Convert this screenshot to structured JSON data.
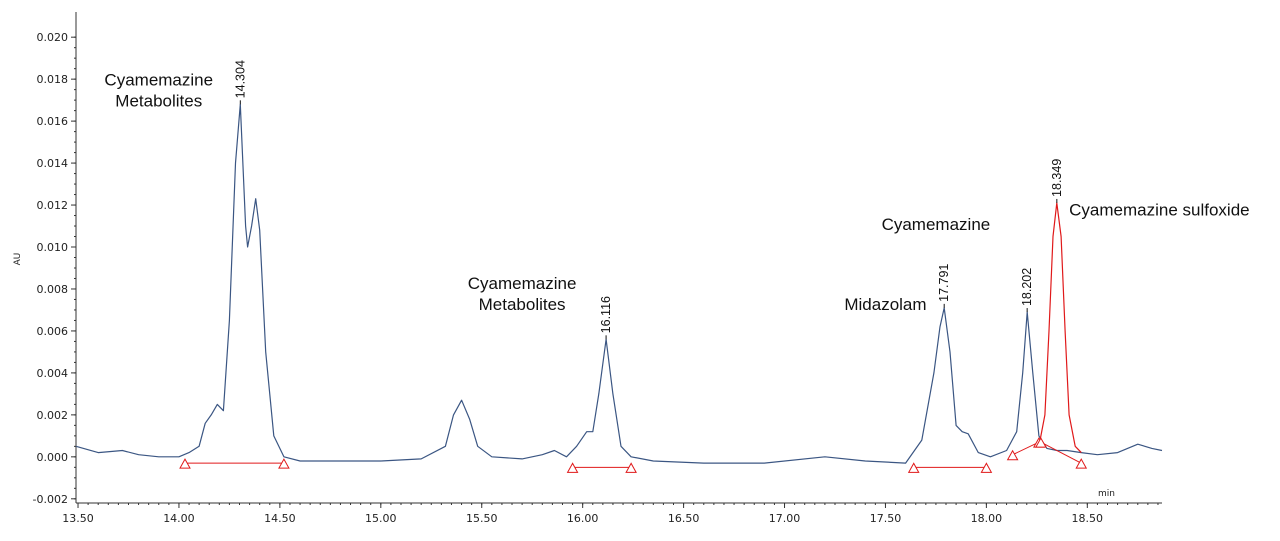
{
  "chart_data": {
    "type": "line",
    "ylabel": "AU",
    "xunit": "min",
    "xlim": [
      13.49,
      18.87
    ],
    "ylim": [
      -0.0022,
      0.0212
    ],
    "x_ticks": [
      13.5,
      14.0,
      14.5,
      15.0,
      15.5,
      16.0,
      16.5,
      17.0,
      17.5,
      18.0,
      18.5
    ],
    "x_tick_labels": [
      "13.50",
      "14.00",
      "14.50",
      "15.00",
      "15.50",
      "16.00",
      "16.50",
      "17.00",
      "17.50",
      "18.00",
      "18.50"
    ],
    "y_ticks": [
      -0.002,
      0.0,
      0.002,
      0.004,
      0.006,
      0.008,
      0.01,
      0.012,
      0.014,
      0.016,
      0.018,
      0.02
    ],
    "y_tick_labels": [
      "-0.002",
      "0.000",
      "0.002",
      "0.004",
      "0.006",
      "0.008",
      "0.010",
      "0.012",
      "0.014",
      "0.016",
      "0.018",
      "0.020"
    ],
    "colors": {
      "trace": "#3b5683",
      "highlight": "#e0191a",
      "baseline": "#e0191a",
      "axis": "#333333"
    },
    "series": [
      {
        "color": "#3b5683",
        "x": [
          13.49,
          13.6,
          13.72,
          13.8,
          13.9,
          14.0,
          14.05,
          14.1,
          14.13,
          14.16,
          14.19,
          14.22,
          14.25,
          14.28,
          14.304,
          14.33,
          14.34,
          14.36,
          14.38,
          14.4,
          14.43,
          14.47,
          14.52,
          14.6,
          14.8,
          15.0,
          15.2,
          15.32,
          15.36,
          15.4,
          15.44,
          15.48,
          15.55,
          15.7,
          15.8,
          15.86,
          15.92,
          15.97,
          16.02,
          16.05,
          16.08,
          16.116,
          16.15,
          16.19,
          16.24,
          16.35,
          16.6,
          16.9,
          17.2,
          17.4,
          17.6,
          17.68,
          17.74,
          17.77,
          17.791,
          17.82,
          17.85,
          17.88,
          17.91,
          17.96,
          18.02,
          18.1,
          18.15,
          18.18,
          18.202,
          18.23,
          18.26,
          18.3,
          18.35,
          18.4,
          18.47,
          18.55,
          18.65,
          18.75,
          18.82,
          18.87
        ],
        "y": [
          0.0005,
          0.0002,
          0.0003,
          0.0001,
          0.0,
          0.0,
          0.0002,
          0.0005,
          0.0016,
          0.002,
          0.0025,
          0.0022,
          0.0065,
          0.014,
          0.0168,
          0.011,
          0.01,
          0.011,
          0.0123,
          0.0108,
          0.005,
          0.001,
          0.0,
          -0.0002,
          -0.0002,
          -0.0002,
          -0.0001,
          0.0005,
          0.002,
          0.0027,
          0.0018,
          0.0005,
          0.0,
          -0.0001,
          0.0001,
          0.0003,
          0.0,
          0.0005,
          0.0012,
          0.0012,
          0.003,
          0.0056,
          0.003,
          0.0005,
          0.0,
          -0.0002,
          -0.0003,
          -0.0003,
          0.0,
          -0.0002,
          -0.0003,
          0.0008,
          0.004,
          0.0062,
          0.0071,
          0.005,
          0.0015,
          0.0012,
          0.0011,
          0.0002,
          0.0,
          0.0003,
          0.0012,
          0.004,
          0.0069,
          0.004,
          0.001,
          0.0004,
          0.0003,
          0.0003,
          0.0002,
          0.0001,
          0.0002,
          0.0006,
          0.0004,
          0.0003
        ]
      },
      {
        "color": "#e0191a",
        "x": [
          18.26,
          18.29,
          18.31,
          18.33,
          18.349,
          18.37,
          18.39,
          18.41,
          18.44,
          18.47
        ],
        "y": [
          0.0005,
          0.002,
          0.006,
          0.0105,
          0.0121,
          0.0105,
          0.006,
          0.002,
          0.0005,
          0.0002
        ]
      }
    ],
    "baselines": [
      {
        "x": [
          14.03,
          14.52
        ],
        "y": [
          -0.0003,
          -0.0003
        ]
      },
      {
        "x": [
          15.95,
          16.24
        ],
        "y": [
          -0.0005,
          -0.0005
        ]
      },
      {
        "x": [
          17.64,
          18.0
        ],
        "y": [
          -0.0005,
          -0.0005
        ]
      },
      {
        "x": [
          18.13,
          18.26
        ],
        "y": [
          0.0001,
          0.0007
        ]
      },
      {
        "x": [
          18.27,
          18.47
        ],
        "y": [
          0.0007,
          -0.0003
        ]
      }
    ],
    "markers": [
      {
        "x": 14.03,
        "y": -0.0003
      },
      {
        "x": 14.52,
        "y": -0.0003
      },
      {
        "x": 15.95,
        "y": -0.0005
      },
      {
        "x": 16.24,
        "y": -0.0005
      },
      {
        "x": 17.64,
        "y": -0.0005
      },
      {
        "x": 18.0,
        "y": -0.0005
      },
      {
        "x": 18.13,
        "y": 0.0001
      },
      {
        "x": 18.26,
        "y": 0.0007
      },
      {
        "x": 18.27,
        "y": 0.0007
      },
      {
        "x": 18.47,
        "y": -0.0003
      }
    ],
    "peak_labels": [
      {
        "text": "14.304",
        "x": 14.304,
        "y": 0.0168
      },
      {
        "text": "16.116",
        "x": 16.116,
        "y": 0.0056
      },
      {
        "text": "17.791",
        "x": 17.791,
        "y": 0.0071
      },
      {
        "text": "18.202",
        "x": 18.202,
        "y": 0.0069
      },
      {
        "text": "18.349",
        "x": 18.349,
        "y": 0.0121
      }
    ],
    "annotations": [
      {
        "lines": [
          "Cyamemazine",
          "Metabolites"
        ],
        "x": 13.9,
        "y": 0.0177,
        "anchor": "middle"
      },
      {
        "lines": [
          "Cyamemazine",
          "Metabolites"
        ],
        "x": 15.7,
        "y": 0.008,
        "anchor": "middle"
      },
      {
        "lines": [
          "Midazolam"
        ],
        "x": 17.5,
        "y": 0.007,
        "anchor": "middle"
      },
      {
        "lines": [
          "Cyamemazine"
        ],
        "x": 17.75,
        "y": 0.0108,
        "anchor": "middle"
      },
      {
        "lines": [
          "Cyamemazine sulfoxide"
        ],
        "x": 18.41,
        "y": 0.0115,
        "anchor": "start"
      }
    ]
  }
}
